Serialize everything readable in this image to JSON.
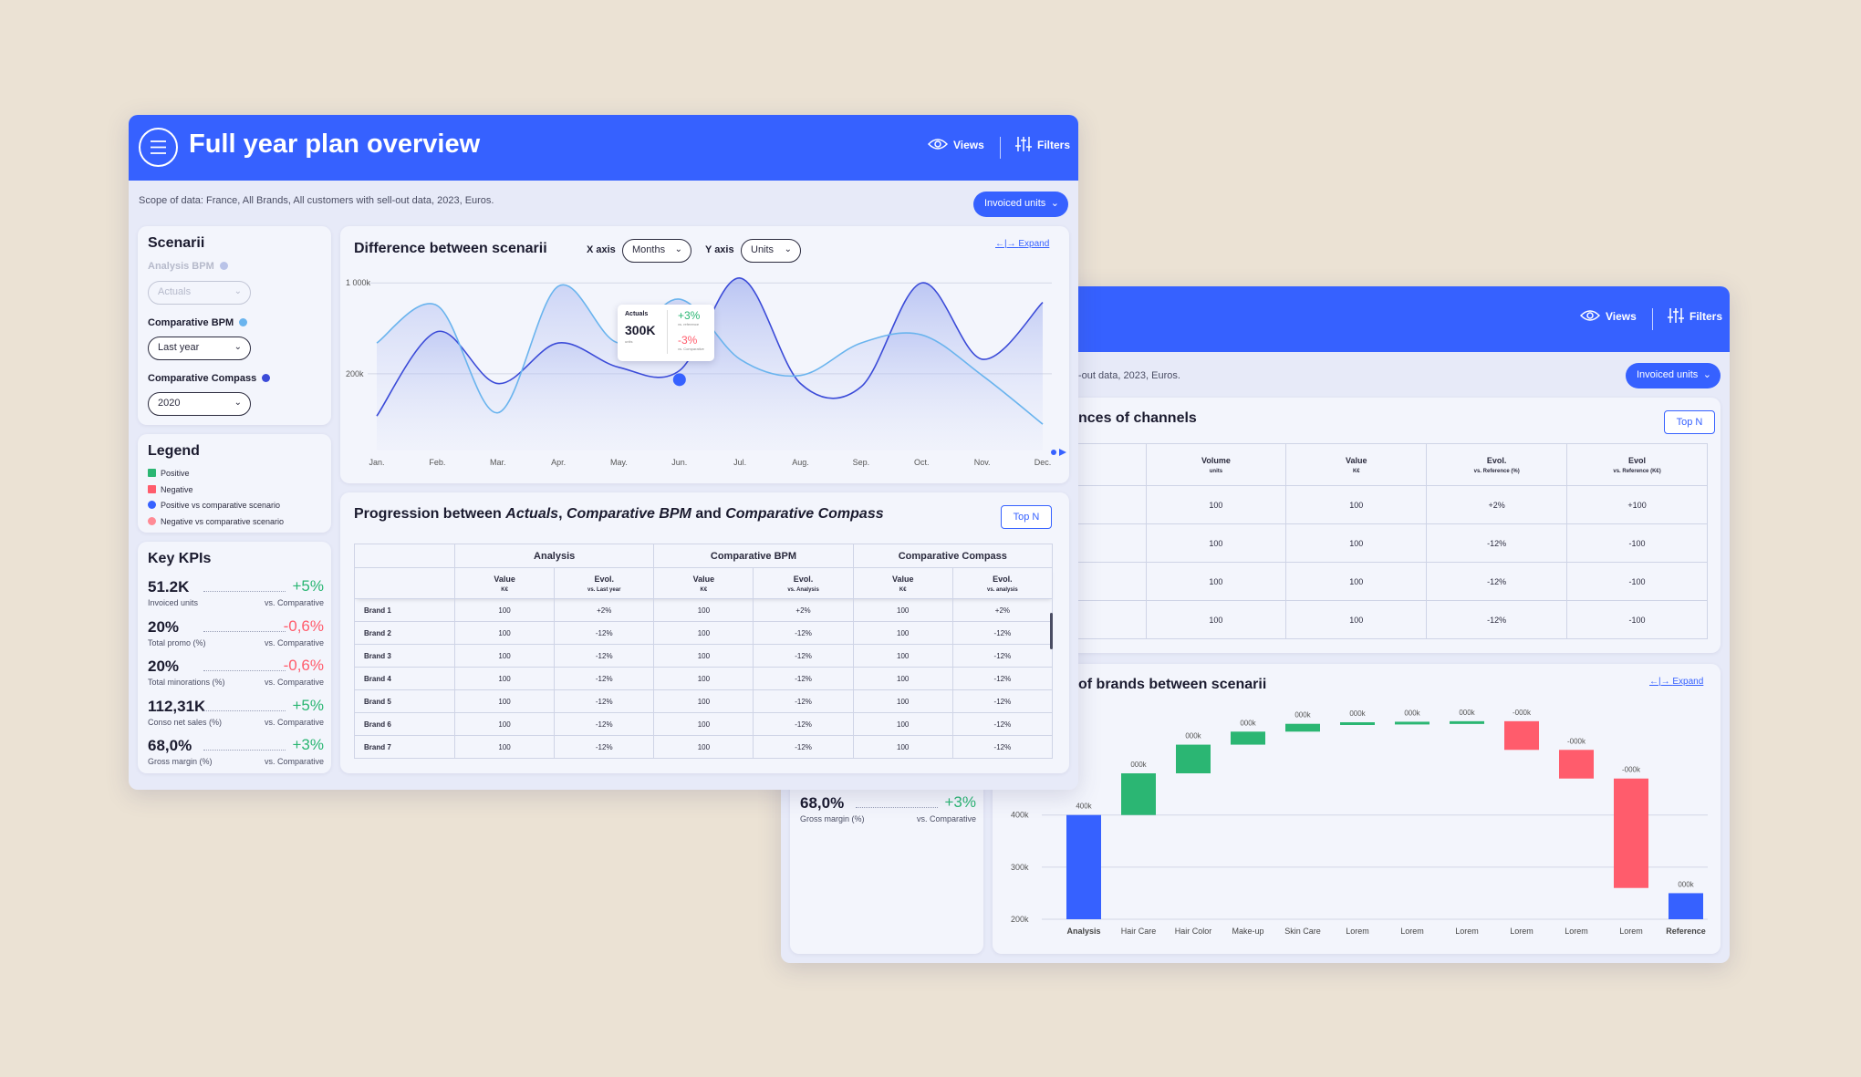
{
  "main": {
    "title": "Full year plan overview",
    "views": "Views",
    "filters": "Filters",
    "scope": "Scope of data: France, All Brands, All customers with sell-out data, 2023, Euros.",
    "unit_select": "Invoiced units",
    "scenarii": {
      "title": "Scenarii",
      "analysis_label": "Analysis BPM",
      "analysis_value": "Actuals",
      "comparative_label": "Comparative BPM",
      "comparative_value": "Last year",
      "compass_label": "Comparative Compass",
      "compass_value": "2020"
    },
    "legend": {
      "title": "Legend",
      "items": [
        "Positive",
        "Negative",
        "Positive vs comparative scenario",
        "Negative vs comparative scenario"
      ],
      "colors": [
        "#2bb673",
        "#ff5c6c",
        "#3661ff",
        "#ff8a95"
      ]
    },
    "kpis": {
      "title": "Key KPIs",
      "items": [
        {
          "value": "51.2K",
          "label": "Invoiced units",
          "delta": "+5%",
          "cmp": "vs. Comparative",
          "sign": "pos"
        },
        {
          "value": "20%",
          "label": "Total promo (%)",
          "delta": "-0,6%",
          "cmp": "vs. Comparative",
          "sign": "neg"
        },
        {
          "value": "20%",
          "label": "Total minorations (%)",
          "delta": "-0,6%",
          "cmp": "vs. Comparative",
          "sign": "neg"
        },
        {
          "value": "112,31K",
          "label": "Conso net sales (%)",
          "delta": "+5%",
          "cmp": "vs. Comparative",
          "sign": "pos"
        },
        {
          "value": "68,0%",
          "label": "Gross margin (%)",
          "delta": "+3%",
          "cmp": "vs. Comparative",
          "sign": "pos"
        }
      ]
    },
    "diff_chart": {
      "title": "Difference between scenarii",
      "x_axis_label": "X axis",
      "x_axis_value": "Months",
      "y_axis_label": "Y axis",
      "y_axis_value": "Units",
      "expand": "Expand",
      "y_ticks": [
        "1 000k",
        "200k"
      ],
      "months": [
        "Jan.",
        "Feb.",
        "Mar.",
        "Apr.",
        "May.",
        "Jun.",
        "Jul.",
        "Aug.",
        "Sep.",
        "Oct.",
        "Nov.",
        "Dec."
      ],
      "tooltip": {
        "series": "Actuals",
        "value": "300K",
        "unit": "units",
        "delta1": "+3%",
        "delta1_label": "vs. reference",
        "delta2": "-3%",
        "delta2_label": "vs. Comparative"
      }
    },
    "progression": {
      "title_parts": [
        "Progression between ",
        "Actuals",
        ", ",
        "Comparative BPM",
        " and ",
        "Comparative Compass"
      ],
      "topn": "Top N",
      "groups": [
        "Analysis",
        "Comparative BPM",
        "Comparative Compass"
      ],
      "subheads": [
        {
          "h": "Value",
          "s": "K€"
        },
        {
          "h": "Evol.",
          "s": "vs. Last year"
        },
        {
          "h": "Value",
          "s": "K€"
        },
        {
          "h": "Evol.",
          "s": "vs. Analysis"
        },
        {
          "h": "Value",
          "s": "K€"
        },
        {
          "h": "Evol.",
          "s": "vs. analysis"
        }
      ],
      "rows": [
        {
          "brand": "Brand 1",
          "cells": [
            "100",
            "+2%",
            "100",
            "+2%",
            "100",
            "+2%"
          ]
        },
        {
          "brand": "Brand 2",
          "cells": [
            "100",
            "-12%",
            "100",
            "-12%",
            "100",
            "-12%"
          ]
        },
        {
          "brand": "Brand 3",
          "cells": [
            "100",
            "-12%",
            "100",
            "-12%",
            "100",
            "-12%"
          ]
        },
        {
          "brand": "Brand 4",
          "cells": [
            "100",
            "-12%",
            "100",
            "-12%",
            "100",
            "-12%"
          ]
        },
        {
          "brand": "Brand 5",
          "cells": [
            "100",
            "-12%",
            "100",
            "-12%",
            "100",
            "-12%"
          ]
        },
        {
          "brand": "Brand 6",
          "cells": [
            "100",
            "-12%",
            "100",
            "-12%",
            "100",
            "-12%"
          ]
        },
        {
          "brand": "Brand 7",
          "cells": [
            "100",
            "-12%",
            "100",
            "-12%",
            "100",
            "-12%"
          ]
        }
      ]
    }
  },
  "back": {
    "views": "Views",
    "filters": "Filters",
    "scope": "-out data, 2023, Euros.",
    "unit_select": "Invoiced units",
    "channels": {
      "title": "nces of channels",
      "topn": "Top N",
      "heads": [
        {
          "h": "Volume",
          "s": "units"
        },
        {
          "h": "Value",
          "s": "K€"
        },
        {
          "h": "Evol.",
          "s": "vs. Reference (%)"
        },
        {
          "h": "Evol",
          "s": "vs. Reference (K€)"
        }
      ],
      "rows": [
        [
          "100",
          "100",
          "+2%",
          "+100"
        ],
        [
          "100",
          "100",
          "-12%",
          "-100"
        ],
        [
          "100",
          "100",
          "-12%",
          "-100"
        ],
        [
          "100",
          "100",
          "-12%",
          "-100"
        ]
      ]
    },
    "kpis": [
      {
        "value": "20%",
        "label": "Total promo (%)",
        "delta": "-0,6%",
        "cmp": "vs. Comparative",
        "sign": "neg"
      },
      {
        "value": "20%",
        "label": "Total minorations (%)",
        "delta": "-0,6%",
        "cmp": "vs. Comparative",
        "sign": "neg"
      },
      {
        "value": "112,31K",
        "label": "Conso net sales (%)",
        "delta": "+5%",
        "cmp": "vs. Comparative",
        "sign": "pos"
      },
      {
        "value": "68,0%",
        "label": "Gross margin (%)",
        "delta": "+3%",
        "cmp": "vs. Comparative",
        "sign": "pos"
      }
    ],
    "waterfall_title": "of brands between scenarii",
    "expand": "Expand"
  },
  "chart_data": [
    {
      "type": "line",
      "title": "Difference between scenarii",
      "x": [
        "Jan.",
        "Feb.",
        "Mar.",
        "Apr.",
        "May.",
        "Jun.",
        "Jul.",
        "Aug.",
        "Sep.",
        "Oct.",
        "Nov.",
        "Dec."
      ],
      "y_ticks": [
        "1 000k",
        "200k"
      ],
      "series": [
        {
          "name": "Actuals",
          "color": "#3b4bd8",
          "values": [
            0.1,
            0.62,
            0.3,
            0.55,
            0.4,
            0.38,
            0.95,
            0.3,
            0.28,
            0.92,
            0.45,
            0.8
          ]
        },
        {
          "name": "",
          "color": "#6ab4ee",
          "values": [
            0.55,
            0.78,
            0.12,
            0.9,
            0.55,
            0.82,
            0.45,
            0.35,
            0.55,
            0.6,
            0.35,
            0.05
          ]
        }
      ]
    },
    {
      "type": "bar",
      "title": "of brands between scenarii",
      "categories": [
        "Analysis",
        "Hair Care",
        "Hair Color",
        "Make-up",
        "Skin Care",
        "Lorem",
        "Lorem",
        "Lorem",
        "Lorem",
        "Lorem",
        "Lorem",
        "Reference"
      ],
      "labels": [
        "400k",
        "000k",
        "000k",
        "000k",
        "000k",
        "000k",
        "000k",
        "000k",
        "-000k",
        "-000k",
        "-000k",
        "000k"
      ],
      "start": [
        200,
        400,
        480,
        535,
        560,
        575,
        578,
        579,
        580,
        525,
        470,
        200
      ],
      "end": [
        400,
        480,
        535,
        560,
        575,
        578,
        579,
        580,
        525,
        470,
        260,
        250
      ],
      "kind": [
        "total",
        "pos",
        "pos",
        "pos",
        "pos",
        "pos",
        "pos",
        "pos",
        "neg",
        "neg",
        "neg",
        "total"
      ],
      "y_ticks": [
        200,
        300,
        400
      ],
      "ylim": [
        200,
        620
      ]
    }
  ]
}
